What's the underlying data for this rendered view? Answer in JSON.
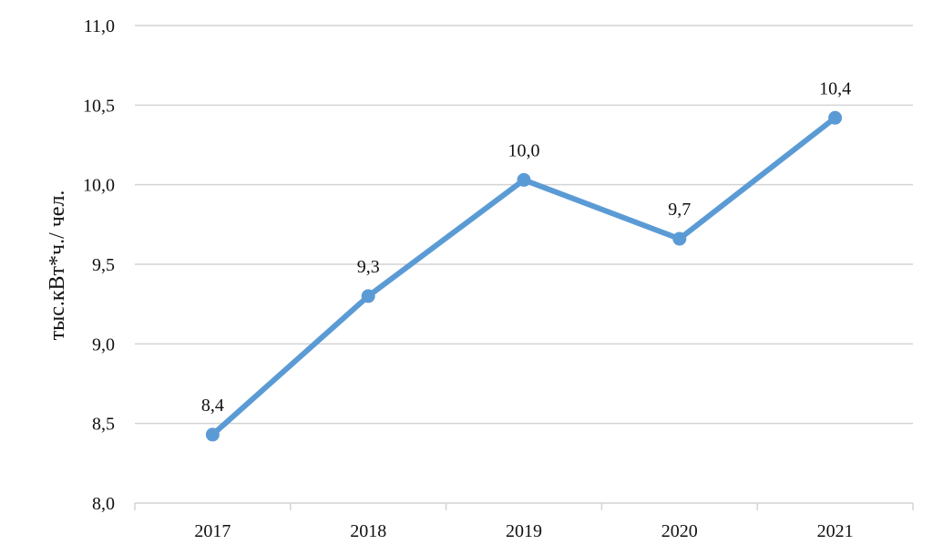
{
  "chart_data": {
    "type": "line",
    "title": "",
    "xlabel": "",
    "ylabel": "тыс.кВт*ч./ чел.",
    "categories": [
      "2017",
      "2018",
      "2019",
      "2020",
      "2021"
    ],
    "series": [
      {
        "values": [
          8.43,
          9.3,
          10.03,
          9.66,
          10.42
        ],
        "labels": [
          "8,4",
          "9,3",
          "10,0",
          "9,7",
          "10,4"
        ]
      }
    ],
    "ylim": [
      8.0,
      11.0
    ],
    "yticks": [
      "8,0",
      "8,5",
      "9,0",
      "9,5",
      "10,0",
      "10,5",
      "11,0"
    ],
    "grid": true,
    "legend": "none"
  },
  "colors": {
    "series": "#5b9bd5",
    "grid": "#d4d4d4",
    "text": "#111111"
  }
}
